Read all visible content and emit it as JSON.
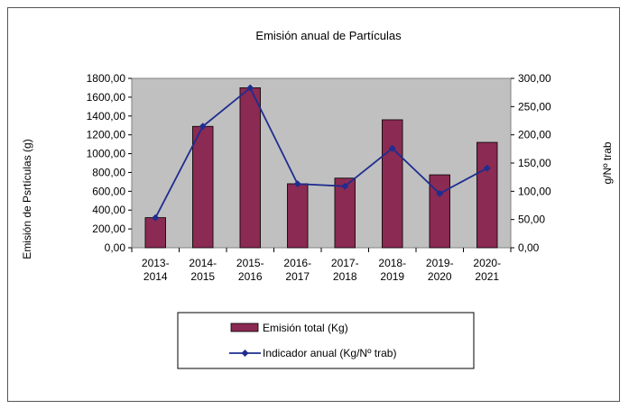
{
  "chart_data": {
    "type": "bar",
    "title": "Emisión anual de Partículas",
    "categories": [
      [
        "2013-",
        "2014"
      ],
      [
        "2014-",
        "2015"
      ],
      [
        "2015-",
        "2016"
      ],
      [
        "2016-",
        "2017"
      ],
      [
        "2017-",
        "2018"
      ],
      [
        "2018-",
        "2019"
      ],
      [
        "2019-",
        "2020"
      ],
      [
        "2020-",
        "2021"
      ]
    ],
    "ylabel": "Emisión de Psrtículas (g)",
    "y2label": "g/Nº trab",
    "ylim": [
      0,
      1800
    ],
    "y2lim": [
      0,
      300
    ],
    "yticks": [
      0,
      200,
      400,
      600,
      800,
      1000,
      1200,
      1400,
      1600,
      1800
    ],
    "y2ticks": [
      0,
      50,
      100,
      150,
      200,
      250,
      300
    ],
    "ytick_labels": [
      "0,00",
      "200,00",
      "400,00",
      "600,00",
      "800,00",
      "1000,00",
      "1200,00",
      "1400,00",
      "1600,00",
      "1800,00"
    ],
    "y2tick_labels": [
      "0,00",
      "50,00",
      "100,00",
      "150,00",
      "200,00",
      "250,00",
      "300,00"
    ],
    "series": [
      {
        "name": "Emisión total (Kg)",
        "type": "bar",
        "axis": "left",
        "color": "#8b2a52",
        "values": [
          320,
          1290,
          1700,
          680,
          740,
          1360,
          775,
          1120
        ]
      },
      {
        "name": "Indicador anual (Kg/Nº trab)",
        "type": "line",
        "axis": "right",
        "color": "#1f2d8f",
        "values": [
          53,
          215,
          283,
          113,
          109,
          176,
          96,
          141
        ]
      }
    ],
    "plot_background": "#c0c0c0",
    "legend_position": "bottom-center",
    "grid": false
  }
}
